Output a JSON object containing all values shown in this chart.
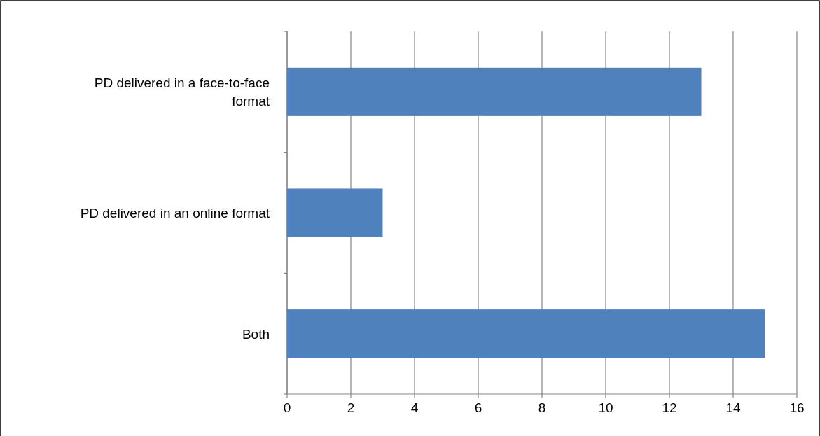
{
  "chart_data": {
    "type": "bar",
    "orientation": "horizontal",
    "categories": [
      "PD delivered in a face-to-face format",
      "PD delivered in an online format",
      "Both"
    ],
    "values": [
      13,
      3,
      15
    ],
    "color": "#4f81bd",
    "xlim": [
      0,
      16
    ],
    "xticks": [
      0,
      2,
      4,
      6,
      8,
      10,
      12,
      14,
      16
    ],
    "grid": "x"
  }
}
